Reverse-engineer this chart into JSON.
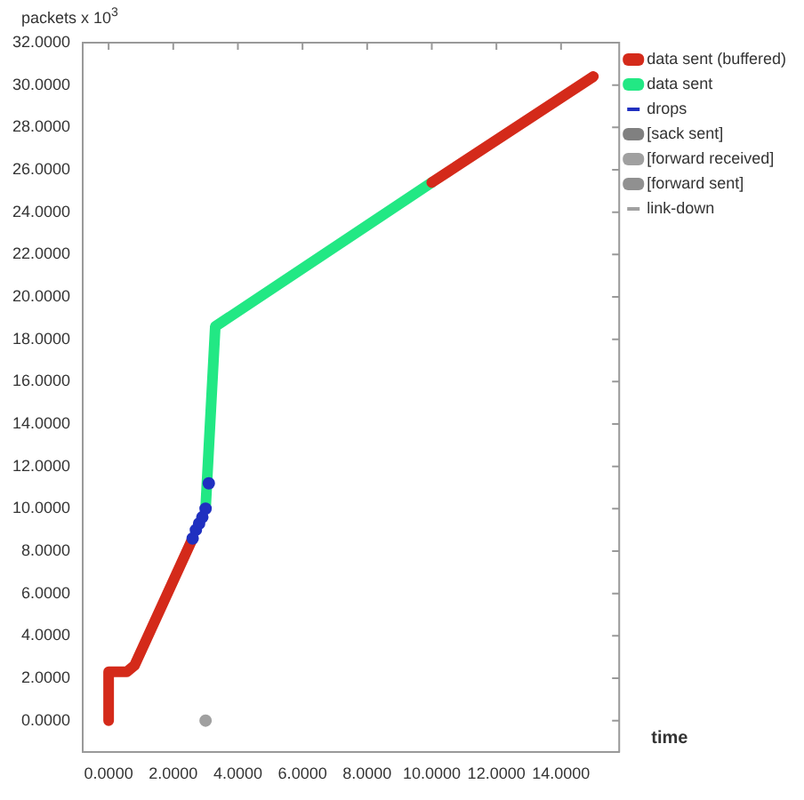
{
  "chart_data": {
    "type": "line",
    "xlabel": "time",
    "ylabel": "packets x 10$^{3}$",
    "xlim": [
      -0.8,
      15.8
    ],
    "ylim": [
      -1.5,
      32
    ],
    "xticks": [
      {
        "value": 0,
        "label": "0.0000"
      },
      {
        "value": 2,
        "label": "2.0000"
      },
      {
        "value": 4,
        "label": "4.0000"
      },
      {
        "value": 6,
        "label": "6.0000"
      },
      {
        "value": 8,
        "label": "8.0000"
      },
      {
        "value": 10,
        "label": "10.0000"
      },
      {
        "value": 12,
        "label": "12.0000"
      },
      {
        "value": 14,
        "label": "14.0000"
      }
    ],
    "yticks": [
      {
        "value": 0,
        "label": "0.0000"
      },
      {
        "value": 2,
        "label": "2.0000"
      },
      {
        "value": 4,
        "label": "4.0000"
      },
      {
        "value": 6,
        "label": "6.0000"
      },
      {
        "value": 8,
        "label": "8.0000"
      },
      {
        "value": 10,
        "label": "10.0000"
      },
      {
        "value": 12,
        "label": "12.0000"
      },
      {
        "value": 14,
        "label": "14.0000"
      },
      {
        "value": 16,
        "label": "16.0000"
      },
      {
        "value": 18,
        "label": "18.0000"
      },
      {
        "value": 20,
        "label": "20.0000"
      },
      {
        "value": 22,
        "label": "22.0000"
      },
      {
        "value": 24,
        "label": "24.0000"
      },
      {
        "value": 26,
        "label": "26.0000"
      },
      {
        "value": 28,
        "label": "28.0000"
      },
      {
        "value": 30,
        "label": "30.0000"
      },
      {
        "value": 32,
        "label": "32.0000"
      }
    ],
    "grid": false,
    "legend": "right",
    "line_style": "solid",
    "series": [
      {
        "name": "data sent (buffered)",
        "color": "#d42a1a",
        "x": [
          0,
          0,
          0.56,
          0.8,
          2.6,
          2.61,
          10.0,
          15.0
        ],
        "values": [
          0,
          2.3,
          2.3,
          2.6,
          8.6,
          null,
          25.4,
          30.4
        ]
      },
      {
        "name": "data sent",
        "color": "#22e884",
        "x": [
          3.0,
          3.3,
          10.0
        ],
        "values": [
          10.0,
          18.6,
          25.4
        ]
      },
      {
        "name": "drops",
        "type": "scatter",
        "marker": "circle",
        "color": "#2030c0",
        "x": [
          2.6,
          2.7,
          2.8,
          2.9,
          3.0,
          3.1
        ],
        "values": [
          8.6,
          9.0,
          9.3,
          9.6,
          10.0,
          11.2
        ]
      },
      {
        "name": "[sack sent]",
        "color": "#808080"
      },
      {
        "name": "[forward received]",
        "color": "#a0a0a0"
      },
      {
        "name": "[forward sent]",
        "color": "#909090"
      },
      {
        "name": "link-down",
        "type": "scatter",
        "marker": "circle",
        "color": "#a0a0a0",
        "x": [
          3.0
        ],
        "values": [
          0
        ]
      }
    ]
  }
}
